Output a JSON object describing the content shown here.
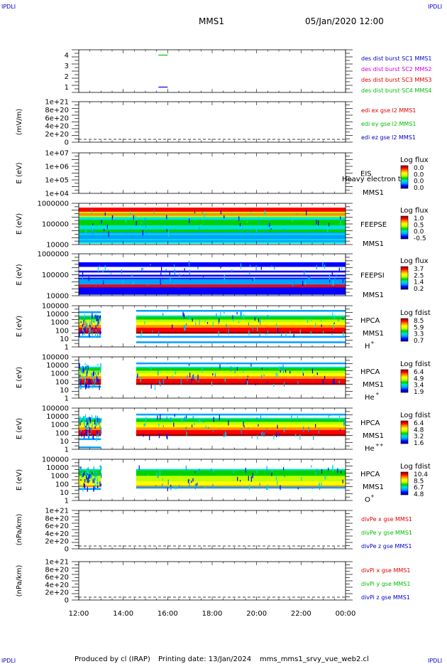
{
  "header": {
    "logo_left": "IPDLI",
    "logo_right": "IPDLI",
    "spacecraft": "MMS1",
    "datetime": "05/Jan/2020 12:00"
  },
  "footer": {
    "produced_by": "Produced by cl (IRAP)",
    "printing_date": "Printing date: 13/Jan/2024",
    "filename": "mms_mms1_srvy_vue_web2.cl",
    "logo_left": "IPDLI",
    "logo_right": "IPDLI"
  },
  "colors": {
    "blue": "#0000c8",
    "magenta": "#d000d0",
    "red": "#e00000",
    "green": "#00c000",
    "colorbar": [
      "#00008b",
      "#0000ff",
      "#00a0ff",
      "#00e0e0",
      "#00d000",
      "#c0ff00",
      "#ffff00",
      "#ff9000",
      "#ff0000",
      "#8b0000"
    ]
  },
  "chart_data": [
    {
      "type": "line",
      "panel": "burst",
      "ylim": [
        0.5,
        4.5
      ],
      "yticks": [
        "1",
        "2",
        "3",
        "4"
      ],
      "legend": [
        {
          "label": "des dist burst SC1 MMS1",
          "color": "#0000c8"
        },
        {
          "label": "des dist burst SC2 MMS2",
          "color": "#d000d0"
        },
        {
          "label": "des dist burst SC3 MMS3",
          "color": "#e00000"
        },
        {
          "label": "des dist burst SC4 MMS4",
          "color": "#00c000"
        }
      ],
      "series": [
        {
          "x": [
            "15:35",
            "16:00"
          ],
          "y": 4,
          "color": "#00c000"
        },
        {
          "x": [
            "15:35",
            "16:00"
          ],
          "y": 1,
          "color": "#0000c8"
        }
      ]
    },
    {
      "type": "line",
      "panel": "edi_e",
      "ylabel": "(mV/m)",
      "yticks": [
        "0",
        "2e+20",
        "4e+20",
        "6e+20",
        "8e+20",
        "1e+21"
      ],
      "legend": [
        {
          "label": "edi ex gse l2 MMS1",
          "color": "#e00000"
        },
        {
          "label": "edi ey gse l2 MMS1",
          "color": "#00c000"
        },
        {
          "label": "edi ez gse l2 MMS1",
          "color": "#0000c8"
        }
      ],
      "zero_line": true
    },
    {
      "type": "heatmap",
      "panel": "EIS",
      "ylabel": "E (eV)",
      "ylim": [
        10000,
        10000000
      ],
      "scale": "log",
      "yticks": [
        "1e+04",
        "1e+05",
        "1e+06",
        "1e+07"
      ],
      "instrument": "EIS",
      "label_overlay": "Heavy electron tof",
      "spacecraft": "MMS1",
      "colorbar_title": "Log flux",
      "colorbar_ticks": [
        "0.0",
        "0.0",
        "0.0",
        "0.0"
      ],
      "data": []
    },
    {
      "type": "heatmap",
      "panel": "FEEPSE",
      "ylabel": "E (eV)",
      "ylim": [
        10000,
        1000000
      ],
      "scale": "log",
      "yticks": [
        "10000",
        "100000",
        "1000000"
      ],
      "instrument": "FEEPSE",
      "spacecraft": "MMS1",
      "colorbar_title": "Log flux",
      "colorbar_ticks": [
        "1.0",
        "0.5",
        "0.0",
        "-0.5"
      ],
      "coverage": [
        [
          "12:00",
          "24:00"
        ]
      ]
    },
    {
      "type": "heatmap",
      "panel": "FEEPSI",
      "ylabel": "E (eV)",
      "ylim": [
        10000,
        1000000
      ],
      "scale": "log",
      "yticks": [
        "10000",
        "100000",
        "1000000"
      ],
      "instrument": "FEEPSI",
      "spacecraft": "MMS1",
      "colorbar_title": "Log flux",
      "colorbar_ticks": [
        "3.7",
        "2.5",
        "1.4",
        "0.2"
      ],
      "coverage": [
        [
          "12:00",
          "24:00"
        ]
      ]
    },
    {
      "type": "heatmap",
      "panel": "HPCA_H",
      "ylabel": "E (eV)",
      "ylim": [
        1,
        100000
      ],
      "scale": "log",
      "yticks": [
        "1",
        "10",
        "100",
        "1000",
        "10000",
        "100000"
      ],
      "instrument": "HPCA",
      "spacecraft": "MMS1",
      "species": "H",
      "species_sup": "+",
      "colorbar_title": "Log fdist",
      "colorbar_ticks": [
        "8.5",
        "5.9",
        "3.3",
        "0.7"
      ],
      "coverage": [
        [
          "12:00",
          "13:00"
        ],
        [
          "14:35",
          "24:00"
        ]
      ]
    },
    {
      "type": "heatmap",
      "panel": "HPCA_He",
      "ylabel": "E (eV)",
      "ylim": [
        1,
        100000
      ],
      "scale": "log",
      "yticks": [
        "1",
        "10",
        "100",
        "1000",
        "10000",
        "100000"
      ],
      "instrument": "HPCA",
      "spacecraft": "MMS1",
      "species": "He",
      "species_sup": "+",
      "colorbar_title": "Log fdist",
      "colorbar_ticks": [
        "6.4",
        "4.9",
        "3.4",
        "1.9"
      ],
      "coverage": [
        [
          "12:00",
          "13:00"
        ],
        [
          "14:35",
          "24:00"
        ]
      ]
    },
    {
      "type": "heatmap",
      "panel": "HPCA_He2",
      "ylabel": "E (eV)",
      "ylim": [
        1,
        100000
      ],
      "scale": "log",
      "yticks": [
        "1",
        "10",
        "100",
        "1000",
        "10000",
        "100000"
      ],
      "instrument": "HPCA",
      "spacecraft": "MMS1",
      "species": "He",
      "species_sup": "++",
      "colorbar_title": "Log fdist",
      "colorbar_ticks": [
        "6.4",
        "4.8",
        "3.2",
        "1.6"
      ],
      "coverage": [
        [
          "12:00",
          "13:00"
        ],
        [
          "14:35",
          "24:00"
        ]
      ]
    },
    {
      "type": "heatmap",
      "panel": "HPCA_O",
      "ylabel": "E (eV)",
      "ylim": [
        1,
        100000
      ],
      "scale": "log",
      "yticks": [
        "1",
        "10",
        "100",
        "1000",
        "10000",
        "100000"
      ],
      "instrument": "HPCA",
      "spacecraft": "MMS1",
      "species": "O",
      "species_sup": "+",
      "colorbar_title": "Log fdist",
      "colorbar_ticks": [
        "10.4",
        "8.5",
        "6.7",
        "4.8"
      ],
      "coverage": [
        [
          "12:00",
          "13:00"
        ],
        [
          "14:35",
          "24:00"
        ]
      ]
    },
    {
      "type": "line",
      "panel": "divpe",
      "ylabel": "(nPa/km)",
      "yticks": [
        "0",
        "2e+20",
        "4e+20",
        "6e+20",
        "8e+20",
        "1e+21"
      ],
      "legend": [
        {
          "label": "divPe x gse MMS1",
          "color": "#e00000"
        },
        {
          "label": "divPe y gse MMS1",
          "color": "#00c000"
        },
        {
          "label": "divPe z gse MMS1",
          "color": "#0000c8"
        }
      ],
      "zero_line": true
    },
    {
      "type": "line",
      "panel": "divpi",
      "ylabel": "(nPa/km)",
      "yticks": [
        "0",
        "2e+20",
        "4e+20",
        "6e+20",
        "8e+20",
        "1e+21"
      ],
      "legend": [
        {
          "label": "divPi x gse MMS1",
          "color": "#e00000"
        },
        {
          "label": "divPi y gse MMS1",
          "color": "#00c000"
        },
        {
          "label": "divPi z gse MMS1",
          "color": "#0000c8"
        }
      ],
      "zero_line": true
    }
  ],
  "xaxis": {
    "ticks": [
      "12:00",
      "14:00",
      "16:00",
      "18:00",
      "20:00",
      "22:00",
      "00:00"
    ]
  }
}
